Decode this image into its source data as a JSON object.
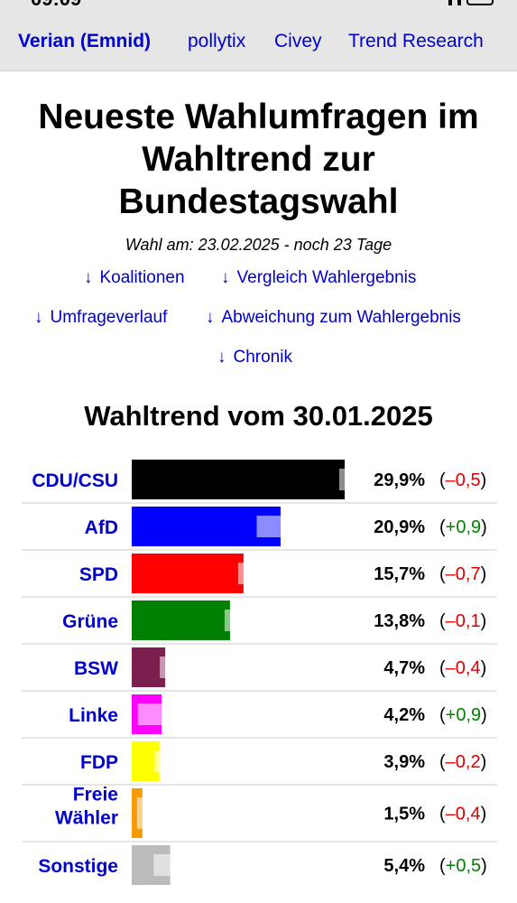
{
  "status_bar": {
    "time": "09:09"
  },
  "institutes": [
    {
      "label": "Verian (Emnid)",
      "active": true
    },
    {
      "label": "pollytix",
      "active": false
    },
    {
      "label": "Civey",
      "active": false
    },
    {
      "label": "Trend Research",
      "active": false
    }
  ],
  "page_title": "Neueste Wahlumfragen im Wahltrend zur Bundestagswahl",
  "election_info": "Wahl am: 23.02.2025 - noch 23 Tage",
  "nav_links": {
    "arrow": "↓",
    "koalitionen": "Koalitionen",
    "vergleich": "Vergleich Wahlergebnis",
    "umfrageverlauf": "Umfrageverlauf",
    "abweichung": "Abweichung zum Wahlergebnis",
    "chronik": "Chronik"
  },
  "chart_title": "Wahltrend vom 30.01.2025",
  "colors": {
    "link": "#0000cc",
    "change_positive": "#008000",
    "change_negative": "#e00000",
    "row_divider": "#cccccc"
  },
  "chart_data": {
    "type": "bar",
    "title": "Wahltrend vom 30.01.2025",
    "orientation": "horizontal",
    "series": [
      {
        "party": "CDU/CSU",
        "value": 29.9,
        "value_label": "29,9%",
        "change": -0.5,
        "change_label": "–0,5",
        "color": "#000000"
      },
      {
        "party": "AfD",
        "value": 20.9,
        "value_label": "20,9%",
        "change": 0.9,
        "change_label": "+0,9",
        "color": "#0000ff"
      },
      {
        "party": "SPD",
        "value": 15.7,
        "value_label": "15,7%",
        "change": -0.7,
        "change_label": "–0,7",
        "color": "#ff0000"
      },
      {
        "party": "Grüne",
        "value": 13.8,
        "value_label": "13,8%",
        "change": -0.1,
        "change_label": "–0,1",
        "color": "#008000"
      },
      {
        "party": "BSW",
        "value": 4.7,
        "value_label": "4,7%",
        "change": -0.4,
        "change_label": "–0,4",
        "color": "#7a1f4e"
      },
      {
        "party": "Linke",
        "value": 4.2,
        "value_label": "4,2%",
        "change": 0.9,
        "change_label": "+0,9",
        "color": "#ff00ff"
      },
      {
        "party": "FDP",
        "value": 3.9,
        "value_label": "3,9%",
        "change": -0.2,
        "change_label": "–0,2",
        "color": "#ffff00"
      },
      {
        "party": "Freie Wähler",
        "value": 1.5,
        "value_label": "1,5%",
        "change": -0.4,
        "change_label": "–0,4",
        "color": "#f59a00"
      },
      {
        "party": "Sonstige",
        "value": 5.4,
        "value_label": "5,4%",
        "change": 0.5,
        "change_label": "+0,5",
        "color": "#bbbbbb"
      }
    ]
  }
}
